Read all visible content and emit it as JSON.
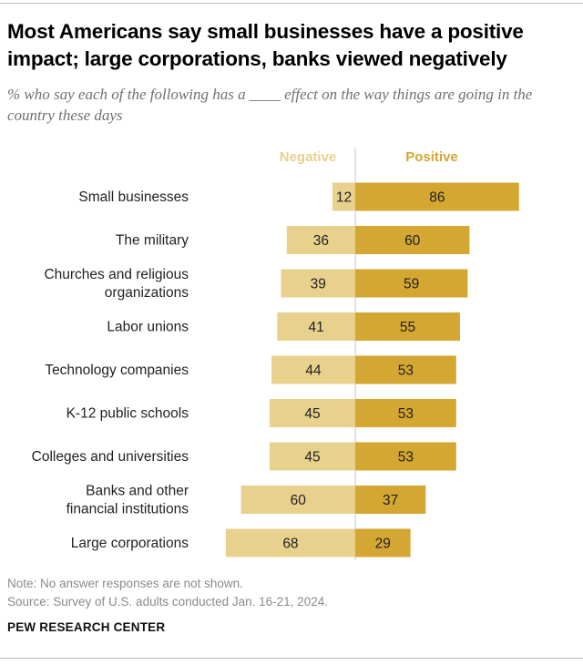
{
  "title": "Most Americans say small businesses have a positive impact; large corporations, banks viewed negatively",
  "subtitle": "% who say each of the following has a ____ effect on the way things are going in the country these days",
  "note": "Note: No answer responses are not shown.",
  "source": "Source: Survey of U.S. adults conducted Jan. 16-21, 2024.",
  "brand": "PEW RESEARCH CENTER",
  "colors": {
    "negative": "#e8d18d",
    "positive": "#d4a632",
    "divider": "#c8c8c8"
  },
  "chart_data": {
    "type": "bar",
    "orientation": "diverging-horizontal",
    "categories": [
      [
        "Small businesses"
      ],
      [
        "The military"
      ],
      [
        "Churches and religious",
        "organizations"
      ],
      [
        "Labor unions"
      ],
      [
        "Technology companies"
      ],
      [
        "K-12 public schools"
      ],
      [
        "Colleges and universities"
      ],
      [
        "Banks and other",
        "financial institutions"
      ],
      [
        "Large corporations"
      ]
    ],
    "series": [
      {
        "name": "Negative",
        "values": [
          12,
          36,
          39,
          41,
          44,
          45,
          45,
          60,
          68
        ]
      },
      {
        "name": "Positive",
        "values": [
          86,
          60,
          59,
          55,
          53,
          53,
          53,
          37,
          29
        ]
      }
    ],
    "legend": "top"
  }
}
